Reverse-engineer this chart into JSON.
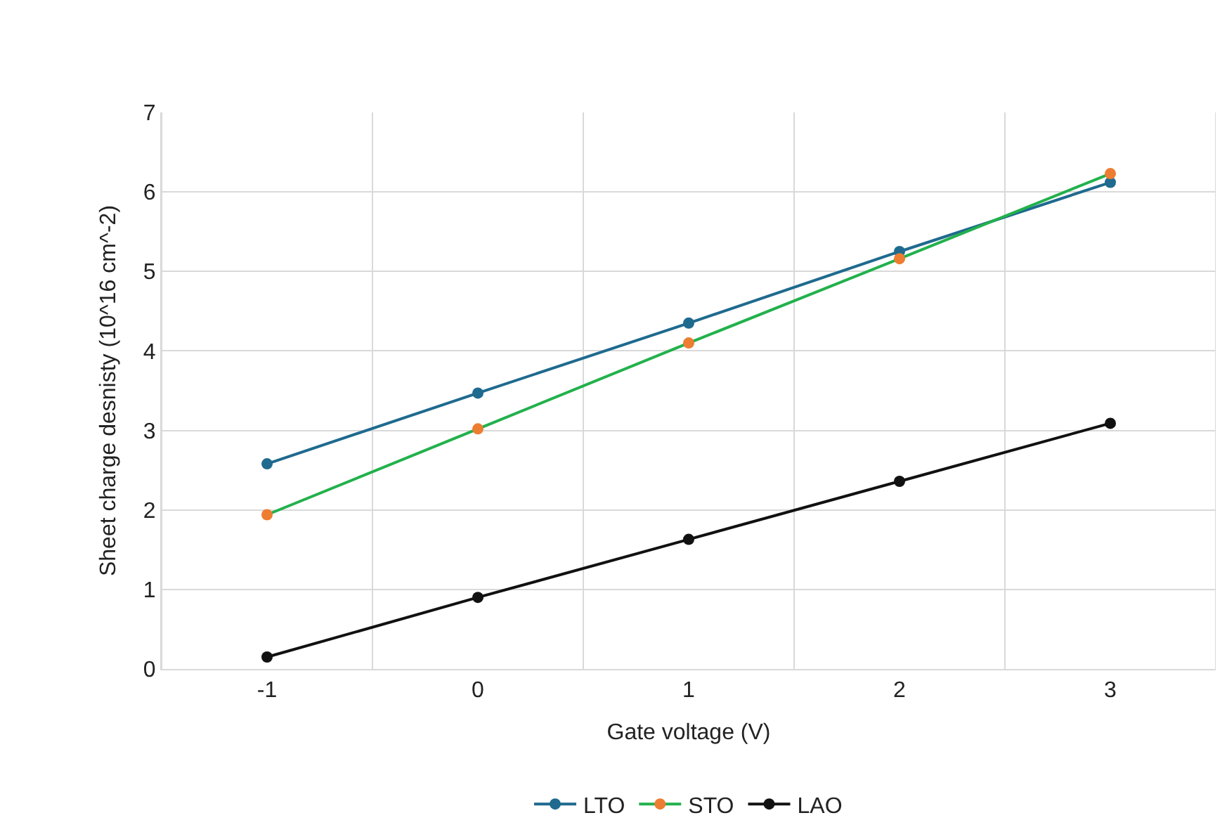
{
  "chart_data": {
    "type": "line",
    "xlabel": "Gate voltage (V)",
    "ylabel": "Sheet charge desnisty (10^16 cm^-2)",
    "categories": [
      "-1",
      "0",
      "1",
      "2",
      "3"
    ],
    "series": [
      {
        "name": "LTO",
        "color": "#1f6a8f",
        "values": [
          2.58,
          3.47,
          4.35,
          5.25,
          6.12
        ]
      },
      {
        "name": "STO",
        "color": "#22b14c",
        "colors": [
          "#ed7d31",
          "#ed7d31",
          "#ed7d31",
          "#ed7d31",
          "#ed7d31"
        ],
        "values": [
          1.94,
          3.02,
          4.1,
          5.16,
          6.23
        ]
      },
      {
        "name": "LAO",
        "color": "#111111",
        "values": [
          0.15,
          0.9,
          1.63,
          2.36,
          3.09
        ]
      }
    ],
    "ylim": [
      0,
      7
    ],
    "yticks": [
      0,
      1,
      2,
      3,
      4,
      5,
      6,
      7
    ],
    "grid": true,
    "legend": "bottom",
    "marker": "circle",
    "line_style": "solid"
  }
}
